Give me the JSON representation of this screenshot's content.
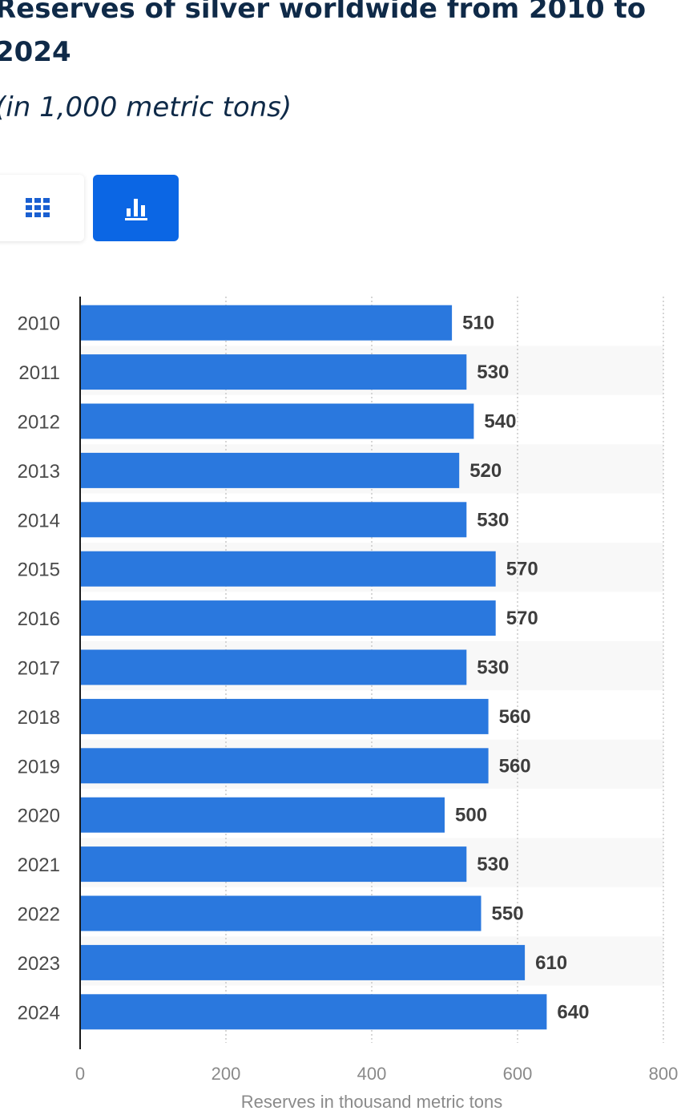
{
  "header": {
    "title": "Reserves of silver worldwide from 2010 to 2024",
    "subtitle": "(in 1,000 metric tons)"
  },
  "controls": {
    "table_icon": "grid-table-icon",
    "chart_icon": "bar-chart-icon",
    "active": "chart",
    "accent": "#0b66e4"
  },
  "chart_data": {
    "type": "bar",
    "orientation": "horizontal",
    "categories": [
      "2010",
      "2011",
      "2012",
      "2013",
      "2014",
      "2015",
      "2016",
      "2017",
      "2018",
      "2019",
      "2020",
      "2021",
      "2022",
      "2023",
      "2024"
    ],
    "values": [
      510,
      530,
      540,
      520,
      530,
      570,
      570,
      530,
      560,
      560,
      500,
      530,
      550,
      610,
      640
    ],
    "xlabel": "Reserves in thousand metric tons",
    "ylabel": "",
    "xlim": [
      0,
      800
    ],
    "xticks": [
      0,
      200,
      400,
      600,
      800
    ],
    "grid": true,
    "bar_color": "#2a78de",
    "data_labels": true
  }
}
